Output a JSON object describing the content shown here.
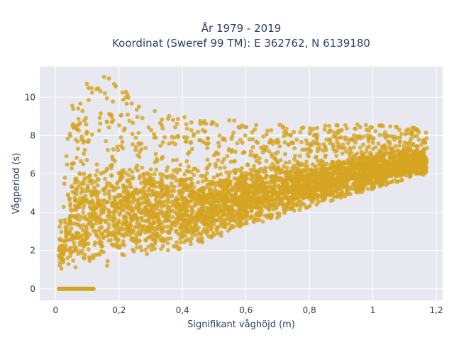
{
  "chart_data": {
    "type": "scatter",
    "title_line1": "År 1979 - 2019",
    "title_line2": "Koordinat (Sweref 99 TM): E 362762, N 6139180",
    "xlabel": "Signifikant våghöjd (m)",
    "ylabel": "Vågperiod (s)",
    "xlim": [
      -0.05,
      1.22
    ],
    "ylim": [
      -0.6,
      11.6
    ],
    "grid": true,
    "x_ticks": [
      0,
      0.2,
      0.4,
      0.6,
      0.8,
      1,
      1.2
    ],
    "x_tick_labels": [
      "0",
      "0,2",
      "0,4",
      "0,6",
      "0,8",
      "1",
      "1,2"
    ],
    "y_ticks": [
      0,
      2,
      4,
      6,
      8,
      10
    ],
    "y_tick_labels": [
      "0",
      "2",
      "4",
      "6",
      "8",
      "10"
    ],
    "colors": {
      "marker": "#d4a421",
      "plot_bg": "#e8e8f0",
      "grid": "#ffffff",
      "text": "#2a3f5f"
    },
    "marker_opacity": 0.8,
    "point_density_outline": {
      "description_points_x": [
        0.01,
        0.05,
        0.1,
        0.15,
        0.2,
        0.3,
        0.4,
        0.5,
        0.6,
        0.7,
        0.8,
        0.9,
        1.0,
        1.1,
        1.17
      ],
      "upper_y": [
        4.0,
        9.5,
        10.8,
        11.2,
        10.6,
        9.6,
        9.0,
        8.8,
        8.8,
        8.6,
        8.5,
        8.6,
        8.6,
        8.5,
        8.3
      ],
      "lower_y": [
        1.0,
        1.0,
        1.0,
        1.1,
        1.4,
        1.8,
        2.1,
        2.6,
        3.2,
        3.7,
        4.2,
        4.7,
        5.2,
        5.7,
        6.0
      ]
    },
    "zero_row": {
      "y": 0,
      "x_range": [
        0.01,
        0.12
      ]
    }
  }
}
